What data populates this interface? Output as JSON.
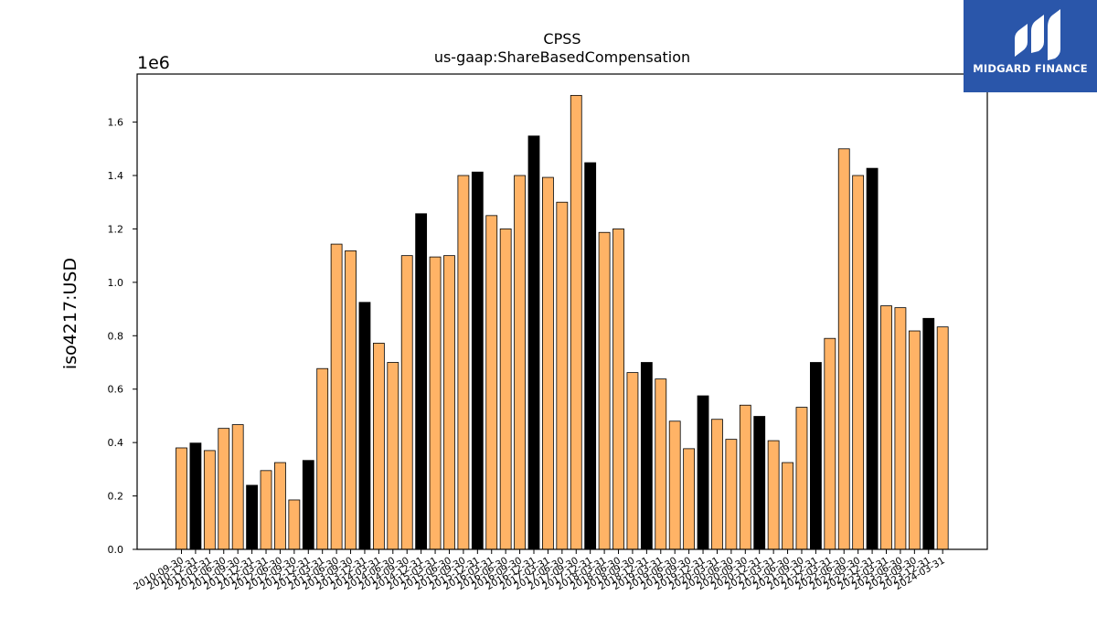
{
  "chart_data": {
    "type": "bar",
    "title": "CPSS",
    "subtitle": "us-gaap:ShareBasedCompensation",
    "ylabel": "iso4217:USD",
    "xlabel": "",
    "y_multiplier_label": "1e6",
    "ylim": [
      0,
      1780000
    ],
    "yticks": [
      0,
      200000,
      400000,
      600000,
      800000,
      1000000,
      1200000,
      1400000,
      1600000
    ],
    "ytick_labels": [
      "0.0",
      "0.2",
      "0.4",
      "0.6",
      "0.8",
      "1.0",
      "1.2",
      "1.4",
      "1.6"
    ],
    "grid": false,
    "legend": "none",
    "colors": {
      "quarter": "#ffb366",
      "fiscal_year_end": "#000000",
      "edge": "#000000"
    },
    "categories": [
      "2010-09-30",
      "2010-12-31",
      "2011-03-31",
      "2011-06-30",
      "2011-09-30",
      "2011-12-31",
      "2012-03-31",
      "2012-06-30",
      "2012-09-30",
      "2012-12-31",
      "2013-03-31",
      "2013-06-30",
      "2013-09-30",
      "2013-12-31",
      "2014-03-31",
      "2014-06-30",
      "2014-09-30",
      "2014-12-31",
      "2015-03-31",
      "2015-06-30",
      "2015-09-30",
      "2015-12-31",
      "2016-03-31",
      "2016-06-30",
      "2016-09-30",
      "2016-12-31",
      "2017-03-31",
      "2017-06-30",
      "2017-09-30",
      "2017-12-31",
      "2018-03-31",
      "2018-06-30",
      "2018-09-30",
      "2018-12-31",
      "2019-03-31",
      "2019-06-30",
      "2019-09-30",
      "2019-12-31",
      "2020-03-31",
      "2020-06-30",
      "2020-09-30",
      "2020-12-31",
      "2021-03-31",
      "2021-06-30",
      "2021-09-30",
      "2021-12-31",
      "2022-03-31",
      "2022-06-30",
      "2022-09-30",
      "2022-12-31",
      "2023-03-31",
      "2023-06-30",
      "2023-09-30",
      "2023-12-31",
      "2024-03-31"
    ],
    "values": [
      380000,
      398000,
      370000,
      453000,
      467000,
      240000,
      295000,
      325000,
      185000,
      333000,
      677000,
      1143000,
      1118000,
      925000,
      772000,
      700000,
      1100000,
      1257000,
      1095000,
      1100000,
      1400000,
      1413000,
      1250000,
      1200000,
      1400000,
      1548000,
      1393000,
      1300000,
      1700000,
      1448000,
      1187000,
      1200000,
      662000,
      700000,
      638000,
      480000,
      377000,
      575000,
      487000,
      412000,
      540000,
      498000,
      407000,
      325000,
      532000,
      700000,
      790000,
      1500000,
      1400000,
      1427000,
      912000,
      905000,
      818000,
      865000,
      833000
    ],
    "highlight": [
      false,
      true,
      false,
      false,
      false,
      true,
      false,
      false,
      false,
      true,
      false,
      false,
      false,
      true,
      false,
      false,
      false,
      true,
      false,
      false,
      false,
      true,
      false,
      false,
      false,
      true,
      false,
      false,
      false,
      true,
      false,
      false,
      false,
      true,
      false,
      false,
      false,
      true,
      false,
      false,
      false,
      true,
      false,
      false,
      false,
      true,
      false,
      false,
      false,
      true,
      false,
      false,
      false,
      true,
      false
    ]
  },
  "logo": {
    "text": "MIDGARD FINANCE",
    "icon": "midgard-m-logo-icon"
  }
}
